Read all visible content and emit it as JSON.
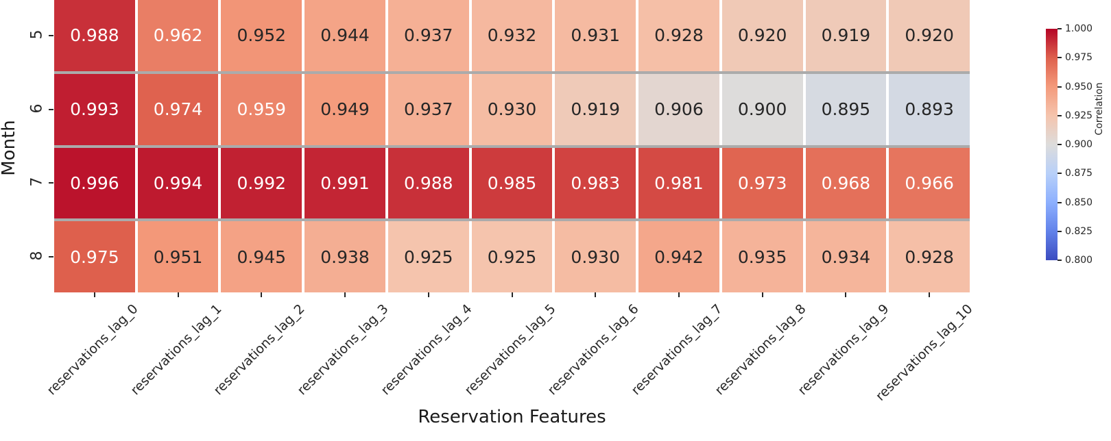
{
  "chart_data": {
    "type": "heatmap",
    "xlabel": "Reservation Features",
    "ylabel": "Month",
    "colorbar_label": "Correlation",
    "x_categories": [
      "reservations_lag_0",
      "reservations_lag_1",
      "reservations_lag_2",
      "reservations_lag_3",
      "reservations_lag_4",
      "reservations_lag_5",
      "reservations_lag_6",
      "reservations_lag_7",
      "reservations_lag_8",
      "reservations_lag_9",
      "reservations_lag_10"
    ],
    "y_categories": [
      "5",
      "6",
      "7",
      "8"
    ],
    "values": [
      [
        0.988,
        0.962,
        0.952,
        0.944,
        0.937,
        0.932,
        0.931,
        0.928,
        0.92,
        0.919,
        0.92
      ],
      [
        0.993,
        0.974,
        0.959,
        0.949,
        0.937,
        0.93,
        0.919,
        0.906,
        0.9,
        0.895,
        0.893
      ],
      [
        0.996,
        0.994,
        0.992,
        0.991,
        0.988,
        0.985,
        0.983,
        0.981,
        0.973,
        0.968,
        0.966
      ],
      [
        0.975,
        0.951,
        0.945,
        0.938,
        0.925,
        0.925,
        0.93,
        0.942,
        0.935,
        0.934,
        0.928
      ]
    ],
    "vmin": 0.8,
    "vmax": 1.0,
    "value_decimals": 3,
    "colormap": "coolwarm",
    "colorbar_ticks": [
      "1.000",
      "0.975",
      "0.950",
      "0.925",
      "0.900",
      "0.875",
      "0.850",
      "0.825",
      "0.800"
    ],
    "legend_position": "right",
    "grid": false
  },
  "colors": {
    "colormap_anchors": [
      [
        59,
        76,
        192
      ],
      [
        98,
        130,
        234
      ],
      [
        141,
        176,
        254
      ],
      [
        184,
        208,
        249
      ],
      [
        221,
        220,
        219
      ],
      [
        245,
        196,
        173
      ],
      [
        244,
        154,
        123
      ],
      [
        222,
        96,
        77
      ],
      [
        180,
        4,
        38
      ]
    ],
    "row_divider": "#ababab",
    "column_gap": "#ffffff",
    "annotation_dark": "#262626",
    "annotation_light": "#ffffff",
    "background": "#ffffff"
  }
}
